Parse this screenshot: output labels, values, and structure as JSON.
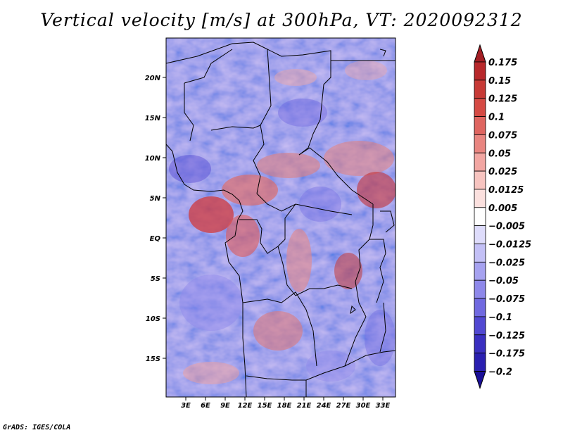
{
  "title": "Vertical velocity [m/s] at 300hPa, VT: 2020092312",
  "credit": "GrADS: IGES/COLA",
  "chart_data": {
    "type": "heatmap",
    "variable": "Vertical velocity",
    "units": "m/s",
    "level": "300hPa",
    "valid_time": "2020092312",
    "lon_range": [
      0,
      35
    ],
    "lat_range": [
      -20,
      25
    ],
    "x_ticks": [
      "3E",
      "6E",
      "9E",
      "12E",
      "15E",
      "18E",
      "21E",
      "24E",
      "27E",
      "30E",
      "33E"
    ],
    "y_ticks": [
      "20N",
      "15N",
      "10N",
      "5N",
      "EQ",
      "5S",
      "10S",
      "15S"
    ],
    "colorbar_levels": [
      "0.175",
      "0.15",
      "0.125",
      "0.1",
      "0.075",
      "0.05",
      "0.025",
      "0.0125",
      "0.005",
      "-0.005",
      "-0.0125",
      "-0.025",
      "-0.05",
      "-0.075",
      "-0.1",
      "-0.125",
      "-0.175",
      "-0.2"
    ],
    "colorbar_colors": [
      "#a31e24",
      "#b8282b",
      "#c73a36",
      "#d54a44",
      "#df6560",
      "#e98580",
      "#f2a6a2",
      "#f7c4c0",
      "#fbe0de",
      "#ffffff",
      "#dedcfb",
      "#c3c0f6",
      "#a6a2f0",
      "#8e88ea",
      "#7069e0",
      "#5148d2",
      "#3a2fc0",
      "#2a1fb0",
      "#1a0f98"
    ]
  }
}
